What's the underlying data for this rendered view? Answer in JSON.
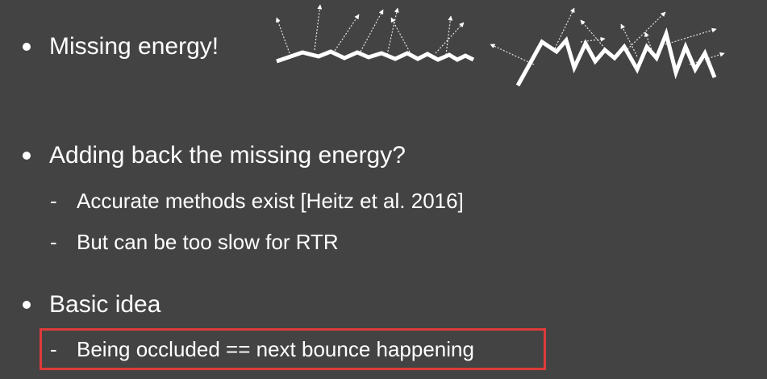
{
  "bullets": {
    "b1": "Missing energy!",
    "b2": "Adding back the missing energy?",
    "b2_sub1": "Accurate methods exist [Heitz et al. 2016]",
    "b2_sub2": "But can be too slow for RTR",
    "b3": "Basic idea",
    "b3_sub1": "Being occluded == next bounce happening"
  },
  "dash": "-",
  "colors": {
    "background": "#434343",
    "text": "#ffffff",
    "highlight_border": "#e03a3a"
  }
}
